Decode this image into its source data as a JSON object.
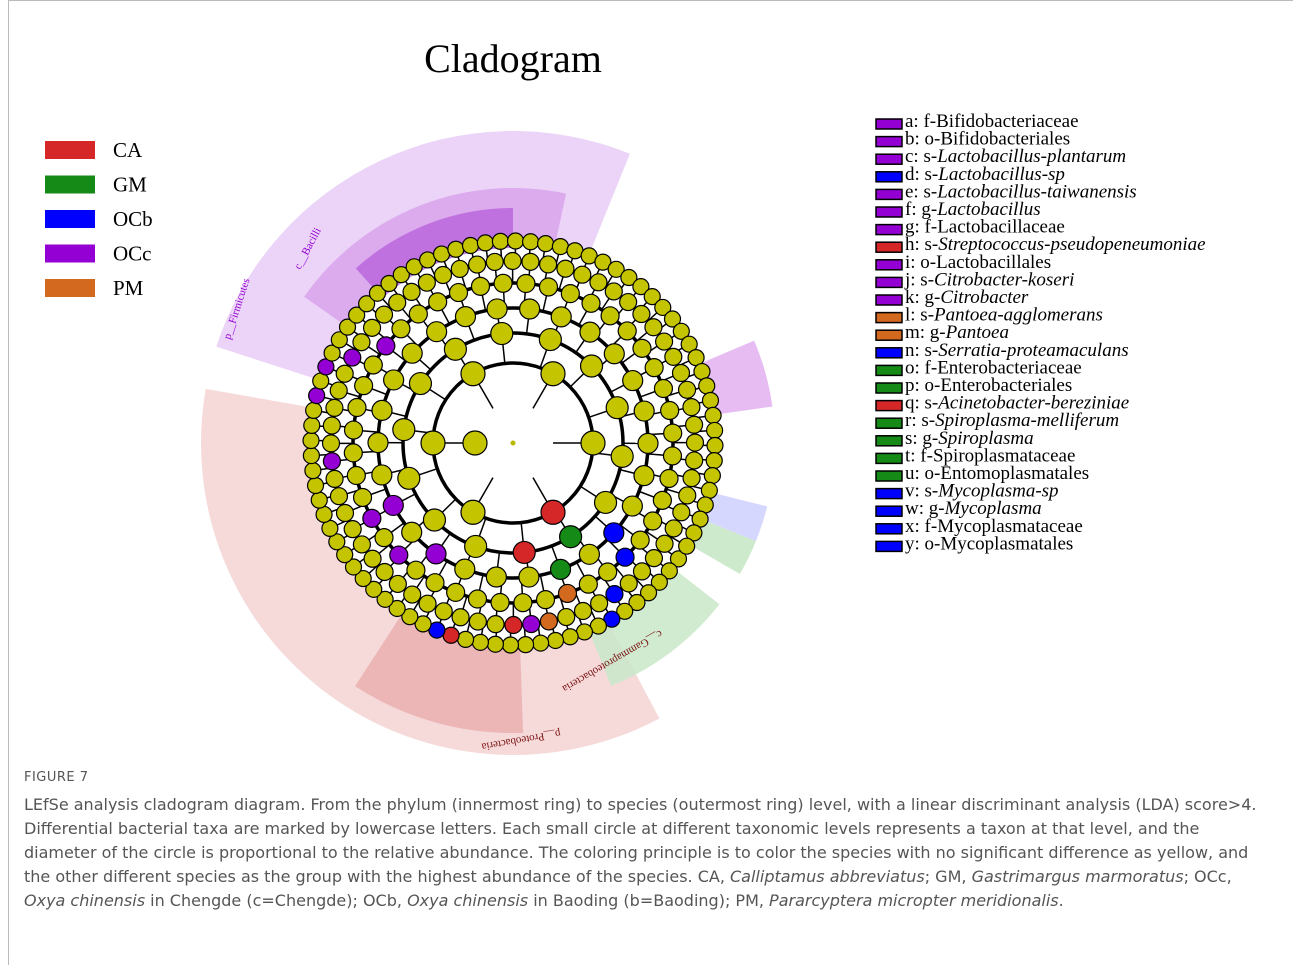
{
  "figure": {
    "title": "Cladogram",
    "groups": [
      {
        "name": "CA",
        "color": "#d62728"
      },
      {
        "name": "GM",
        "color": "#168a16"
      },
      {
        "name": "OCb",
        "color": "#0000ff"
      },
      {
        "name": "OCc",
        "color": "#9400d3"
      },
      {
        "name": "PM",
        "color": "#d2691e"
      }
    ],
    "taxa": [
      {
        "prefix": "a: f-",
        "name": "Bifidobacteriaceae",
        "italic": false,
        "color": "#9400d3"
      },
      {
        "prefix": "b: o-",
        "name": "Bifidobacteriales",
        "italic": false,
        "color": "#9400d3"
      },
      {
        "prefix": "c: s-",
        "name": "Lactobacillus-plantarum",
        "italic": true,
        "color": "#9400d3"
      },
      {
        "prefix": "d: s-",
        "name": "Lactobacillus-sp",
        "italic": true,
        "color": "#0000ff"
      },
      {
        "prefix": "e: s-",
        "name": "Lactobacillus-taiwanensis",
        "italic": true,
        "color": "#9400d3"
      },
      {
        "prefix": "f: g-",
        "name": "Lactobacillus",
        "italic": true,
        "color": "#9400d3"
      },
      {
        "prefix": "g: f-",
        "name": "Lactobacillaceae",
        "italic": false,
        "color": "#9400d3"
      },
      {
        "prefix": "h: s-",
        "name": "Streptococcus-pseudopeneumoniae",
        "italic": true,
        "color": "#d62728"
      },
      {
        "prefix": "i: o-",
        "name": "Lactobacillales",
        "italic": false,
        "color": "#9400d3"
      },
      {
        "prefix": "j: s-",
        "name": "Citrobacter-koseri",
        "italic": true,
        "color": "#9400d3"
      },
      {
        "prefix": "k: g-",
        "name": "Citrobacter",
        "italic": true,
        "color": "#9400d3"
      },
      {
        "prefix": "l: s-",
        "name": "Pantoea-agglomerans",
        "italic": true,
        "color": "#d2691e"
      },
      {
        "prefix": "m: g-",
        "name": "Pantoea",
        "italic": true,
        "color": "#d2691e"
      },
      {
        "prefix": "n: s-",
        "name": "Serratia-proteamaculans",
        "italic": true,
        "color": "#0000ff"
      },
      {
        "prefix": "o: f-",
        "name": "Enterobacteriaceae",
        "italic": false,
        "color": "#168a16"
      },
      {
        "prefix": "p: o-",
        "name": "Enterobacteriales",
        "italic": false,
        "color": "#168a16"
      },
      {
        "prefix": "q: s-",
        "name": "Acinetobacter-bereziniae",
        "italic": true,
        "color": "#d62728"
      },
      {
        "prefix": "r: s-",
        "name": "Spiroplasma-melliferum",
        "italic": true,
        "color": "#168a16"
      },
      {
        "prefix": "s: g-",
        "name": "Spiroplasma",
        "italic": true,
        "color": "#168a16"
      },
      {
        "prefix": "t: f-",
        "name": "Spiroplasmataceae",
        "italic": false,
        "color": "#168a16"
      },
      {
        "prefix": "u: o-",
        "name": "Entomoplasmatales",
        "italic": false,
        "color": "#168a16"
      },
      {
        "prefix": "v: s-",
        "name": "Mycoplasma-sp",
        "italic": true,
        "color": "#0000ff"
      },
      {
        "prefix": "w: g-",
        "name": "Mycoplasma",
        "italic": true,
        "color": "#0000ff"
      },
      {
        "prefix": "x: f-",
        "name": "Mycoplasmataceae",
        "italic": false,
        "color": "#0000ff"
      },
      {
        "prefix": "y: o-",
        "name": "Mycoplasmatales",
        "italic": false,
        "color": "#0000ff"
      }
    ],
    "clade_labels": [
      "c__Bacilli",
      "p__Firmicutes",
      "p__Proteobacteria",
      "c__Gammaproteobacteria"
    ],
    "caption": {
      "label": "FIGURE 7",
      "segments": [
        {
          "text": "LEfSe analysis cladogram diagram. From the phylum (innermost ring) to species (outermost ring) level, with a linear discriminant analysis (LDA) score>4. Differential bacterial taxa are marked by lowercase letters. Each small circle at different taxonomic levels represents a taxon at that level, and the diameter of the circle is proportional to the relative abundance. The coloring principle is to color the species with no significant difference as yellow, and the other different species as the group with the highest abundance of the species. CA, ",
          "italic": false
        },
        {
          "text": "Calliptamus abbreviatus",
          "italic": true
        },
        {
          "text": "; GM, ",
          "italic": false
        },
        {
          "text": "Gastrimargus marmoratus",
          "italic": true
        },
        {
          "text": "; OCc, ",
          "italic": false
        },
        {
          "text": "Oxya chinensis",
          "italic": true
        },
        {
          "text": " in Chengde (c=Chengde); OCb, ",
          "italic": false
        },
        {
          "text": "Oxya chinensis",
          "italic": true
        },
        {
          "text": " in Baoding (b=Baoding); PM, ",
          "italic": false
        },
        {
          "text": "Pararcyptera micropter meridionalis",
          "italic": true
        },
        {
          "text": ".",
          "italic": false
        }
      ]
    }
  }
}
